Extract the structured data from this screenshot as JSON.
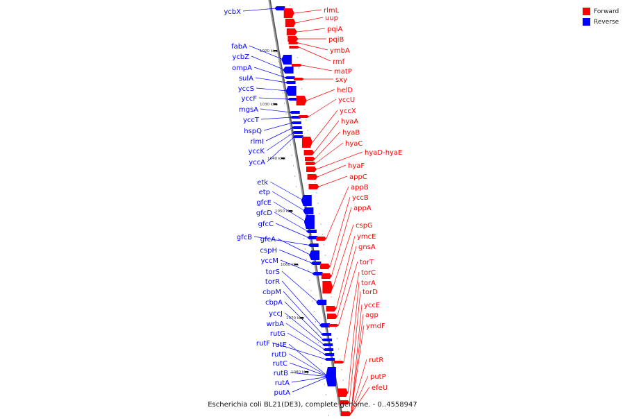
{
  "caption": "Escherichia coli BL21(DE3), complete genome. - 0..4558947",
  "legend": {
    "forward_label": "Forward",
    "reverse_label": "Reverse",
    "forward_color": "#ff0000",
    "reverse_color": "#0000ff"
  },
  "scale_labels": [
    "1020 kbp",
    "1030 kbp",
    "1040 kbp",
    "1050 kbp",
    "1060 kbp",
    "1070 kbp",
    "1080 kbp"
  ],
  "reverse_genes": [
    "ycbX",
    "fabA",
    "ycbZ",
    "ompA",
    "sulA",
    "yccS",
    "yccF",
    "mgsA",
    "yccT",
    "hspQ",
    "rlmI",
    "yccK",
    "yccA",
    "etk",
    "etp",
    "gfcE",
    "gfcD",
    "gfcC",
    "gfcB",
    "gfcA",
    "cspH",
    "yccM",
    "torS",
    "torR",
    "cbpM",
    "cbpA",
    "yccJ",
    "wrbA",
    "rutG",
    "rutF",
    "rutE",
    "rutD",
    "rutC",
    "rutB",
    "rutA",
    "putA"
  ],
  "forward_genes": [
    "rlmL",
    "uup",
    "pqiA",
    "pqiB",
    "ymbA",
    "rmf",
    "matP",
    "sxy",
    "helD",
    "yccU",
    "yccX",
    "hyaA",
    "hyaB",
    "hyaC",
    "hyaD-hyaE",
    "hyaF",
    "appC",
    "appB",
    "yccB",
    "appA",
    "cspG",
    "ymcE",
    "gnsA",
    "torT",
    "torC",
    "torA",
    "torD",
    "yccE",
    "agp",
    "ymdF",
    "rutR",
    "putP",
    "efeU"
  ]
}
